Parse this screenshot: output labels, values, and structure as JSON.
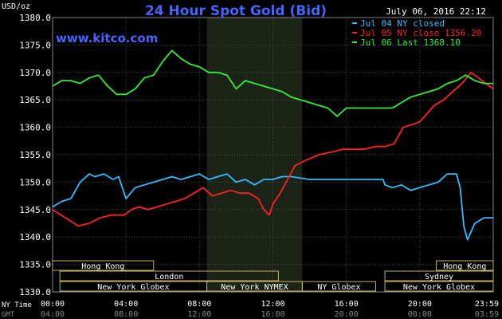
{
  "chart_data": {
    "type": "line",
    "title": "24 Hour Spot Gold (Bid)",
    "website": "www.kitco.com",
    "date_label": "July 06, 2016 22:12",
    "ylabel": "USD/oz",
    "ylim": [
      1330,
      1380
    ],
    "y_ticks": [
      "1380.0",
      "1375.0",
      "1370.0",
      "1365.0",
      "1360.0",
      "1355.0",
      "1350.0",
      "1345.0",
      "1340.0",
      "1335.0",
      "1330.0"
    ],
    "y_tick_values": [
      1380,
      1375,
      1370,
      1365,
      1360,
      1355,
      1350,
      1345,
      1340,
      1335,
      1330
    ],
    "x_ticks_ny": [
      "00:00",
      "04:00",
      "08:00",
      "12:00",
      "16:00",
      "20:00",
      "23:59"
    ],
    "x_ticks_gmt": [
      "04:00",
      "08:00",
      "12:00",
      "16:00",
      "20:00",
      "00:00",
      "03:59"
    ],
    "x_tick_hours": [
      0,
      4,
      8,
      12,
      16,
      20,
      24
    ],
    "x_label_ny": "NY Time",
    "x_label_gmt": "GMT",
    "grid": true,
    "legend_position": "top-right",
    "shaded_session_hours": [
      8.4,
      13.6
    ],
    "series": [
      {
        "name": "Jul 04 NY closed",
        "legend_label": "Jul 04 NY closed",
        "color": "#33bbff",
        "x": [
          0,
          0.5,
          1,
          1.5,
          2,
          2.3,
          2.8,
          3.3,
          3.6,
          4,
          4.5,
          5,
          5.5,
          6,
          6.5,
          7,
          7.5,
          8,
          8.5,
          9,
          9.5,
          10,
          10.5,
          11,
          11.5,
          12,
          12.5,
          13,
          14,
          15,
          16,
          17,
          18,
          18.1,
          18.5,
          19,
          19.5,
          20,
          20.5,
          21,
          21.5,
          22,
          22.2,
          22.4,
          22.6,
          23,
          23.5,
          24
        ],
        "values": [
          1345.5,
          1346.5,
          1347,
          1350,
          1351.5,
          1351,
          1351.5,
          1350.5,
          1351,
          1347,
          1349,
          1349.5,
          1350,
          1350.5,
          1351,
          1350.5,
          1351,
          1351.5,
          1350.5,
          1351,
          1351.5,
          1350,
          1350.5,
          1349.5,
          1350.5,
          1350.5,
          1351,
          1351,
          1350.5,
          1350.5,
          1350.5,
          1350.5,
          1350.5,
          1349.5,
          1349,
          1349.5,
          1348.5,
          1349,
          1349.5,
          1350,
          1351.5,
          1351.5,
          1349,
          1342,
          1339.5,
          1342.5,
          1343.5,
          1343.5
        ]
      },
      {
        "name": "Jul 05 NY close 1356.20",
        "legend_label": "Jul 05 NY close 1356.20",
        "color": "#ff2222",
        "x": [
          0,
          0.7,
          1.4,
          2,
          2.6,
          3.2,
          3.9,
          4.3,
          4.7,
          5.2,
          5.7,
          6.2,
          6.7,
          7.2,
          7.7,
          8.2,
          8.7,
          9.2,
          9.7,
          10.2,
          10.7,
          11.2,
          11.5,
          11.8,
          12,
          12.4,
          12.8,
          13.2,
          13.8,
          14.5,
          15.2,
          15.8,
          16.4,
          17,
          17.6,
          18.1,
          18.6,
          19.1,
          19.6,
          20,
          20.4,
          20.8,
          21.3,
          21.8,
          22.3,
          22.8,
          23.2,
          23.6,
          24
        ],
        "values": [
          1345,
          1343.5,
          1342,
          1342.5,
          1343.5,
          1344,
          1344,
          1345,
          1345.5,
          1345,
          1345.5,
          1346,
          1346.5,
          1347,
          1348,
          1349,
          1347.5,
          1348,
          1348.5,
          1348,
          1348,
          1347,
          1345,
          1344,
          1346,
          1348,
          1350.5,
          1353,
          1354,
          1355,
          1355.5,
          1356,
          1356,
          1356,
          1356.5,
          1356.5,
          1357,
          1360,
          1360.5,
          1361,
          1362.5,
          1364,
          1365,
          1366.5,
          1368,
          1370,
          1369,
          1368,
          1367
        ]
      },
      {
        "name": "Jul 06 Last 1368.10",
        "legend_label": "Jul 06 Last 1368.10",
        "color": "#33ee33",
        "x": [
          0,
          0.5,
          1,
          1.5,
          2,
          2.5,
          3,
          3.5,
          4,
          4.5,
          5,
          5.5,
          6,
          6.5,
          7,
          7.5,
          8,
          8.5,
          9,
          9.5,
          10,
          10.5,
          11,
          11.5,
          12,
          12.5,
          13,
          13.5,
          14,
          14.5,
          15,
          15.5,
          16,
          16.5,
          17,
          17.5,
          18,
          18.5,
          19,
          19.5,
          20,
          20.5,
          21,
          21.5,
          22,
          22.5,
          23,
          23.5,
          24
        ],
        "values": [
          1367.5,
          1368.5,
          1368.5,
          1368,
          1369,
          1369.5,
          1367.5,
          1366,
          1366,
          1367,
          1369,
          1369.5,
          1372,
          1374,
          1372.5,
          1371.5,
          1371,
          1370,
          1370,
          1369.5,
          1367,
          1368.5,
          1368,
          1367.5,
          1367,
          1366.5,
          1365.5,
          1365,
          1364.5,
          1364,
          1363.5,
          1362,
          1363.5,
          1363.5,
          1363.5,
          1363.5,
          1363.5,
          1363.5,
          1364.5,
          1365.5,
          1366,
          1366.5,
          1367,
          1368,
          1368.5,
          1369.5,
          1368.5,
          1368,
          1368
        ]
      }
    ],
    "sessions": [
      {
        "label": "Hong Kong",
        "row": 0,
        "start": 0,
        "end": 5.5
      },
      {
        "label": "Hong Kong",
        "row": 0,
        "start": 20.9,
        "end": 24
      },
      {
        "label": "London",
        "row": 1,
        "start": 0.4,
        "end": 12.3
      },
      {
        "label": "Sydney",
        "row": 1,
        "start": 18.1,
        "end": 24
      },
      {
        "label": "New York Globex",
        "row": 2,
        "start": 0.4,
        "end": 8.4
      },
      {
        "label": "New York NYMEX",
        "row": 2,
        "start": 8.4,
        "end": 13.6
      },
      {
        "label": "NY Globex",
        "row": 2,
        "start": 13.6,
        "end": 17.6
      },
      {
        "label": "New York Globex",
        "row": 2,
        "start": 18.1,
        "end": 24
      }
    ]
  }
}
